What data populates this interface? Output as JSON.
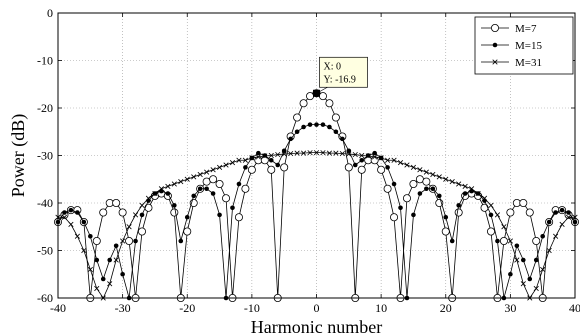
{
  "chart_data": {
    "type": "line",
    "title": "",
    "xlabel": "Harmonic number",
    "ylabel": "Power (dB)",
    "xlim": [
      -40,
      40
    ],
    "ylim": [
      -60,
      0
    ],
    "xticks": [
      -40,
      -30,
      -20,
      -10,
      0,
      10,
      20,
      30,
      40
    ],
    "yticks": [
      0,
      -10,
      -20,
      -30,
      -40,
      -50,
      -60
    ],
    "grid": true,
    "grid_style": "dotted",
    "legend_position": "top-right",
    "series": [
      {
        "name": "M=7",
        "marker": "open-circle",
        "color": "#000000",
        "points": [
          [
            -40,
            -44
          ],
          [
            -39,
            -42.5
          ],
          [
            -38,
            -41.5
          ],
          [
            -37,
            -41.5
          ],
          [
            -36,
            -44
          ],
          [
            -35,
            -60
          ],
          [
            -34,
            -48
          ],
          [
            -33,
            -42
          ],
          [
            -32,
            -40
          ],
          [
            -31,
            -40
          ],
          [
            -30,
            -42
          ],
          [
            -29,
            -48
          ],
          [
            -28,
            -60
          ],
          [
            -27,
            -46
          ],
          [
            -26,
            -41
          ],
          [
            -25,
            -38.5
          ],
          [
            -24,
            -38
          ],
          [
            -23,
            -38.5
          ],
          [
            -22,
            -42
          ],
          [
            -21,
            -60
          ],
          [
            -20,
            -46
          ],
          [
            -19,
            -40
          ],
          [
            -18,
            -37
          ],
          [
            -17,
            -35.5
          ],
          [
            -16,
            -35
          ],
          [
            -15,
            -36
          ],
          [
            -14,
            -39
          ],
          [
            -13,
            -60
          ],
          [
            -12,
            -43
          ],
          [
            -11,
            -37
          ],
          [
            -10,
            -33
          ],
          [
            -9,
            -31
          ],
          [
            -8,
            -31
          ],
          [
            -7,
            -33
          ],
          [
            -6,
            -60
          ],
          [
            -5,
            -32.5
          ],
          [
            -4,
            -26
          ],
          [
            -3,
            -22
          ],
          [
            -2,
            -19
          ],
          [
            -1,
            -17.5
          ],
          [
            0,
            -16.9
          ],
          [
            1,
            -17.5
          ],
          [
            2,
            -19
          ],
          [
            3,
            -22
          ],
          [
            4,
            -26
          ],
          [
            5,
            -32.5
          ],
          [
            6,
            -60
          ],
          [
            7,
            -33
          ],
          [
            8,
            -31
          ],
          [
            9,
            -31
          ],
          [
            10,
            -33
          ],
          [
            11,
            -37
          ],
          [
            12,
            -43
          ],
          [
            13,
            -60
          ],
          [
            14,
            -39
          ],
          [
            15,
            -36
          ],
          [
            16,
            -35
          ],
          [
            17,
            -35.5
          ],
          [
            18,
            -37
          ],
          [
            19,
            -40
          ],
          [
            20,
            -46
          ],
          [
            21,
            -60
          ],
          [
            22,
            -42
          ],
          [
            23,
            -38.5
          ],
          [
            24,
            -38
          ],
          [
            25,
            -38.5
          ],
          [
            26,
            -41
          ],
          [
            27,
            -46
          ],
          [
            28,
            -60
          ],
          [
            29,
            -48
          ],
          [
            30,
            -42
          ],
          [
            31,
            -40
          ],
          [
            32,
            -40
          ],
          [
            33,
            -42
          ],
          [
            34,
            -48
          ],
          [
            35,
            -60
          ],
          [
            36,
            -44
          ],
          [
            37,
            -41.5
          ],
          [
            38,
            -41.5
          ],
          [
            39,
            -42.5
          ],
          [
            40,
            -44
          ]
        ]
      },
      {
        "name": "M=15",
        "marker": "filled-dot",
        "color": "#000000",
        "points": [
          [
            -40,
            -44
          ],
          [
            -39,
            -42
          ],
          [
            -38,
            -41.5
          ],
          [
            -37,
            -42
          ],
          [
            -36,
            -44
          ],
          [
            -35,
            -47
          ],
          [
            -34,
            -52
          ],
          [
            -33,
            -56
          ],
          [
            -32,
            -52
          ],
          [
            -31,
            -49
          ],
          [
            -30,
            -55
          ],
          [
            -29,
            -60
          ],
          [
            -28,
            -48
          ],
          [
            -27,
            -42.5
          ],
          [
            -26,
            -39.5
          ],
          [
            -25,
            -38
          ],
          [
            -24,
            -37.5
          ],
          [
            -23,
            -38
          ],
          [
            -22,
            -40.5
          ],
          [
            -21,
            -48
          ],
          [
            -20,
            -43
          ],
          [
            -19,
            -38.5
          ],
          [
            -18,
            -37
          ],
          [
            -17,
            -37
          ],
          [
            -16,
            -38
          ],
          [
            -15,
            -42.5
          ],
          [
            -14,
            -60
          ],
          [
            -13,
            -41
          ],
          [
            -12,
            -36
          ],
          [
            -11,
            -32.5
          ],
          [
            -10,
            -30.5
          ],
          [
            -9,
            -29.5
          ],
          [
            -8,
            -30
          ],
          [
            -7,
            -31
          ],
          [
            -6,
            -32
          ],
          [
            -5,
            -29
          ],
          [
            -4,
            -26.5
          ],
          [
            -3,
            -25
          ],
          [
            -2,
            -24
          ],
          [
            -1,
            -23.5
          ],
          [
            0,
            -23.5
          ],
          [
            1,
            -23.5
          ],
          [
            2,
            -24
          ],
          [
            3,
            -25
          ],
          [
            4,
            -26.5
          ],
          [
            5,
            -29
          ],
          [
            6,
            -32
          ],
          [
            7,
            -31
          ],
          [
            8,
            -30
          ],
          [
            9,
            -29.5
          ],
          [
            10,
            -30.5
          ],
          [
            11,
            -32.5
          ],
          [
            12,
            -36
          ],
          [
            13,
            -41
          ],
          [
            14,
            -60
          ],
          [
            15,
            -42.5
          ],
          [
            16,
            -38
          ],
          [
            17,
            -37
          ],
          [
            18,
            -37
          ],
          [
            19,
            -38.5
          ],
          [
            20,
            -43
          ],
          [
            21,
            -48
          ],
          [
            22,
            -40.5
          ],
          [
            23,
            -38
          ],
          [
            24,
            -37.5
          ],
          [
            25,
            -38
          ],
          [
            26,
            -39.5
          ],
          [
            27,
            -42.5
          ],
          [
            28,
            -48
          ],
          [
            29,
            -60
          ],
          [
            30,
            -55
          ],
          [
            31,
            -49
          ],
          [
            32,
            -52
          ],
          [
            33,
            -56
          ],
          [
            34,
            -52
          ],
          [
            35,
            -47
          ],
          [
            36,
            -44
          ],
          [
            37,
            -42
          ],
          [
            38,
            -41.5
          ],
          [
            39,
            -42
          ],
          [
            40,
            -44
          ]
        ]
      },
      {
        "name": "M=31",
        "marker": "cross",
        "color": "#000000",
        "points": [
          [
            -40,
            -43
          ],
          [
            -39,
            -43
          ],
          [
            -38,
            -44.5
          ],
          [
            -37,
            -47
          ],
          [
            -36,
            -50
          ],
          [
            -35,
            -54
          ],
          [
            -34,
            -58
          ],
          [
            -33,
            -60
          ],
          [
            -32,
            -57
          ],
          [
            -31,
            -52
          ],
          [
            -30,
            -48
          ],
          [
            -29,
            -45
          ],
          [
            -28,
            -42.5
          ],
          [
            -27,
            -40.5
          ],
          [
            -26,
            -39
          ],
          [
            -25,
            -38
          ],
          [
            -24,
            -37
          ],
          [
            -23,
            -36.5
          ],
          [
            -22,
            -36
          ],
          [
            -21,
            -35.5
          ],
          [
            -20,
            -35
          ],
          [
            -19,
            -34.5
          ],
          [
            -18,
            -34
          ],
          [
            -17,
            -33.5
          ],
          [
            -16,
            -33
          ],
          [
            -15,
            -32.5
          ],
          [
            -14,
            -32
          ],
          [
            -13,
            -31.5
          ],
          [
            -12,
            -31
          ],
          [
            -11,
            -31
          ],
          [
            -10,
            -30.5
          ],
          [
            -9,
            -30.3
          ],
          [
            -8,
            -30.1
          ],
          [
            -7,
            -30
          ],
          [
            -6,
            -29.8
          ],
          [
            -5,
            -29.7
          ],
          [
            -4,
            -29.6
          ],
          [
            -3,
            -29.5
          ],
          [
            -2,
            -29.5
          ],
          [
            -1,
            -29.4
          ],
          [
            0,
            -29.4
          ],
          [
            1,
            -29.4
          ],
          [
            2,
            -29.5
          ],
          [
            3,
            -29.5
          ],
          [
            4,
            -29.6
          ],
          [
            5,
            -29.7
          ],
          [
            6,
            -29.8
          ],
          [
            7,
            -30
          ],
          [
            8,
            -30.1
          ],
          [
            9,
            -30.3
          ],
          [
            10,
            -30.5
          ],
          [
            11,
            -31
          ],
          [
            12,
            -31
          ],
          [
            13,
            -31.5
          ],
          [
            14,
            -32
          ],
          [
            15,
            -32.5
          ],
          [
            16,
            -33
          ],
          [
            17,
            -33.5
          ],
          [
            18,
            -34
          ],
          [
            19,
            -34.5
          ],
          [
            20,
            -35
          ],
          [
            21,
            -35.5
          ],
          [
            22,
            -36
          ],
          [
            23,
            -36.5
          ],
          [
            24,
            -37
          ],
          [
            25,
            -38
          ],
          [
            26,
            -39
          ],
          [
            27,
            -40.5
          ],
          [
            28,
            -42.5
          ],
          [
            29,
            -45
          ],
          [
            30,
            -48
          ],
          [
            31,
            -52
          ],
          [
            32,
            -57
          ],
          [
            33,
            -60
          ],
          [
            34,
            -58
          ],
          [
            35,
            -54
          ],
          [
            36,
            -50
          ],
          [
            37,
            -47
          ],
          [
            38,
            -44.5
          ],
          [
            39,
            -43
          ],
          [
            40,
            -43
          ]
        ]
      }
    ],
    "datatip": {
      "x": 0,
      "y": -16.9,
      "x_text": "X: 0",
      "y_text": "Y: -16.9"
    }
  }
}
